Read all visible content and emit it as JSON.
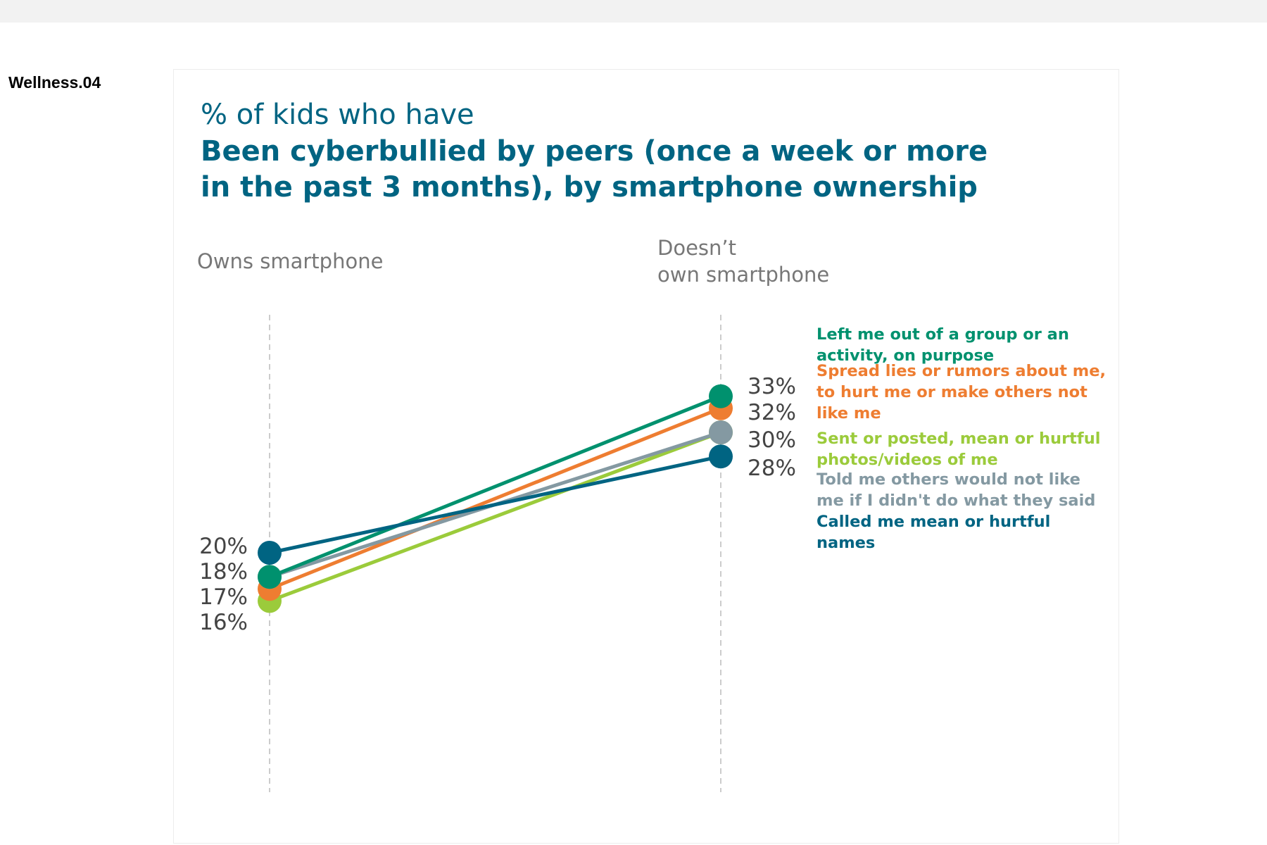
{
  "page_id": "Wellness.04",
  "chart_data": {
    "type": "line",
    "subtitle": "% of kids who have",
    "title": "Been cyberbullied  by peers (once a week or more in the past 3 months), by smartphone ownership",
    "categories": [
      "Owns smartphone",
      "Doesn’t own smartphone"
    ],
    "category_lines": [
      [
        "Owns smartphone"
      ],
      [
        "Doesn’t",
        "own  smartphone"
      ]
    ],
    "grid": false,
    "legend_placement": "right",
    "left_labels": [
      "20%",
      "18%",
      "17%",
      "16%"
    ],
    "right_labels": [
      "33%",
      "32%",
      "30%",
      "28%"
    ],
    "series": [
      {
        "name": "Called me mean or  hurtful names",
        "values": [
          20,
          28
        ],
        "color": "#006482"
      },
      {
        "name": "Told me others would  not like me if I didn't do what they said",
        "values": [
          18,
          30
        ],
        "color": "#8499A2"
      },
      {
        "name": "Left me out of a group  or an activity, on purpose",
        "values": [
          18,
          33
        ],
        "color": "#00916E"
      },
      {
        "name": "Spread lies or rumors about me, to hurt me or  make others  not like me",
        "values": [
          17,
          32
        ],
        "color": "#EE7D31"
      },
      {
        "name": "Sent or posted, mean or hurtful photos/videos of me",
        "values": [
          16,
          30
        ],
        "color": "#9BCB3B"
      }
    ],
    "legend": [
      {
        "text": "Left me out of a group  or an activity, on purpose",
        "color": "#00916E"
      },
      {
        "text": "Spread lies or rumors about me, to hurt me or  make others  not like me",
        "color": "#EE7D31"
      },
      {
        "text": "Sent or posted, mean or hurtful photos/videos of me",
        "color": "#9BCB3B"
      },
      {
        "text": "Told me others would  not like me if I didn't do what they said",
        "color": "#8499A2"
      },
      {
        "text": "Called me mean or  hurtful names",
        "color": "#006482"
      }
    ]
  }
}
